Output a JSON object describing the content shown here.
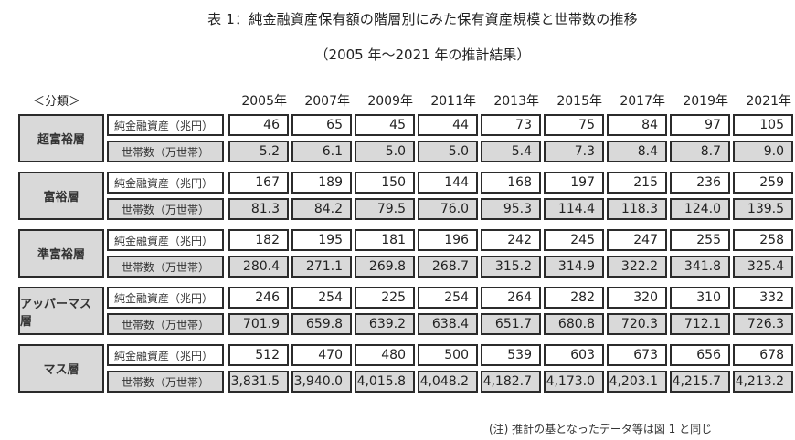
{
  "header": {
    "title": "表 1：純金融資産保有額の階層別にみた保有資産規模と世帯数の推移",
    "subtitle": "（2005 年～2021 年の推計結果）"
  },
  "table": {
    "category_header": "＜分類＞",
    "years": [
      "2005年",
      "2007年",
      "2009年",
      "2011年",
      "2013年",
      "2015年",
      "2017年",
      "2019年",
      "2021年"
    ],
    "metric_labels": {
      "assets": "純金融資産（兆円）",
      "households": "世帯数（万世帯）"
    },
    "groups": [
      {
        "name": "超富裕層",
        "assets": [
          "46",
          "65",
          "45",
          "44",
          "73",
          "75",
          "84",
          "97",
          "105"
        ],
        "households": [
          "5.2",
          "6.1",
          "5.0",
          "5.0",
          "5.4",
          "7.3",
          "8.4",
          "8.7",
          "9.0"
        ]
      },
      {
        "name": "富裕層",
        "assets": [
          "167",
          "189",
          "150",
          "144",
          "168",
          "197",
          "215",
          "236",
          "259"
        ],
        "households": [
          "81.3",
          "84.2",
          "79.5",
          "76.0",
          "95.3",
          "114.4",
          "118.3",
          "124.0",
          "139.5"
        ]
      },
      {
        "name": "準富裕層",
        "assets": [
          "182",
          "195",
          "181",
          "196",
          "242",
          "245",
          "247",
          "255",
          "258"
        ],
        "households": [
          "280.4",
          "271.1",
          "269.8",
          "268.7",
          "315.2",
          "314.9",
          "322.2",
          "341.8",
          "325.4"
        ]
      },
      {
        "name": "アッパーマス層",
        "assets": [
          "246",
          "254",
          "225",
          "254",
          "264",
          "282",
          "320",
          "310",
          "332"
        ],
        "households": [
          "701.9",
          "659.8",
          "639.2",
          "638.4",
          "651.7",
          "680.8",
          "720.3",
          "712.1",
          "726.3"
        ]
      },
      {
        "name": "マス層",
        "assets": [
          "512",
          "470",
          "480",
          "500",
          "539",
          "603",
          "673",
          "656",
          "678"
        ],
        "households": [
          "3,831.5",
          "3,940.0",
          "4,015.8",
          "4,048.2",
          "4,182.7",
          "4,173.0",
          "4,203.1",
          "4,215.7",
          "4,213.2"
        ]
      }
    ]
  },
  "footer": {
    "note": "(注) 推計の基となったデータ等は図 1 と同じ"
  },
  "colors": {
    "shaded_cell": "#d9d9d9",
    "border": "#2b2b2b",
    "background": "#ffffff"
  }
}
